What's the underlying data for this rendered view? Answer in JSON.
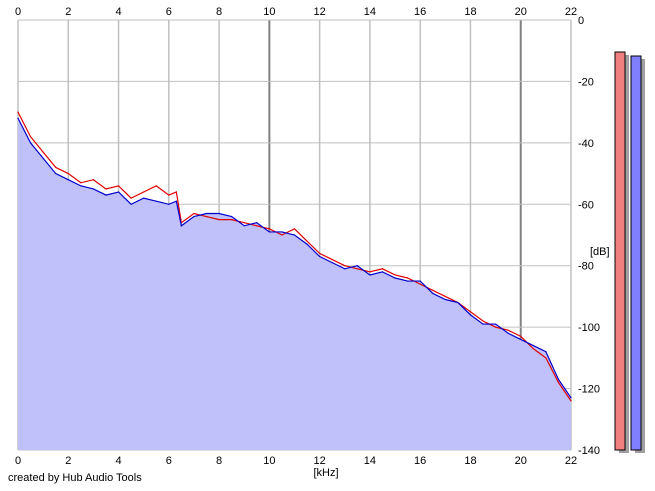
{
  "chart_data": {
    "type": "area",
    "xlabel": "[kHz]",
    "ylabel": "[dB]",
    "xlim": [
      0,
      22
    ],
    "ylim": [
      -140,
      0
    ],
    "x_ticks": [
      "0",
      "2",
      "4",
      "6",
      "8",
      "10",
      "12",
      "14",
      "16",
      "18",
      "20",
      "22"
    ],
    "y_ticks": [
      "0",
      "-20",
      "-40",
      "-60",
      "-80",
      "-100",
      "-120",
      "-140"
    ],
    "grid": true,
    "colors": {
      "area_fill": "#c0c0fa",
      "red_series": "#e00000",
      "blue_series": "#0000cc",
      "gridline": "#c0c0c0",
      "gridline_major": "#808080",
      "meter_left": "#f08080",
      "meter_right": "#8080ff"
    },
    "series": [
      {
        "color": "#e00000",
        "x": [
          0.0,
          0.5,
          1.0,
          1.5,
          2.0,
          2.5,
          3.0,
          3.5,
          4.0,
          4.5,
          5.0,
          5.5,
          6.0,
          6.3,
          6.5,
          7.0,
          7.5,
          8.0,
          8.5,
          9.0,
          9.5,
          10.0,
          10.5,
          11.0,
          11.5,
          12.0,
          12.5,
          13.0,
          13.5,
          14.0,
          14.5,
          15.0,
          15.5,
          16.0,
          16.5,
          17.0,
          17.5,
          18.0,
          18.5,
          19.0,
          19.5,
          20.0,
          20.5,
          21.0,
          21.5,
          22.0
        ],
        "y": [
          -30,
          -38,
          -43,
          -48,
          -50,
          -53,
          -52,
          -55,
          -54,
          -58,
          -56,
          -54,
          -57,
          -56,
          -66,
          -63,
          -64,
          -65,
          -65,
          -66,
          -67,
          -68,
          -70,
          -68,
          -72,
          -76,
          -78,
          -80,
          -81,
          -82,
          -81,
          -83,
          -84,
          -86,
          -88,
          -90,
          -92,
          -95,
          -98,
          -100,
          -101,
          -103,
          -107,
          -110,
          -118,
          -124
        ]
      },
      {
        "color": "#0000cc",
        "x": [
          0.0,
          0.5,
          1.0,
          1.5,
          2.0,
          2.5,
          3.0,
          3.5,
          4.0,
          4.5,
          5.0,
          5.5,
          6.0,
          6.3,
          6.5,
          7.0,
          7.5,
          8.0,
          8.5,
          9.0,
          9.5,
          10.0,
          10.5,
          11.0,
          11.5,
          12.0,
          12.5,
          13.0,
          13.5,
          14.0,
          14.5,
          15.0,
          15.5,
          16.0,
          16.5,
          17.0,
          17.5,
          18.0,
          18.5,
          19.0,
          19.5,
          20.0,
          20.5,
          21.0,
          21.5,
          22.0
        ],
        "y": [
          -32,
          -40,
          -45,
          -50,
          -52,
          -54,
          -55,
          -57,
          -56,
          -60,
          -58,
          -59,
          -60,
          -59,
          -67,
          -64,
          -63,
          -63,
          -64,
          -67,
          -66,
          -69,
          -69,
          -70,
          -73,
          -77,
          -79,
          -81,
          -80,
          -83,
          -82,
          -84,
          -85,
          -85,
          -89,
          -91,
          -92,
          -96,
          -99,
          -99,
          -102,
          -104,
          -106,
          -108,
          -117,
          -123
        ]
      }
    ]
  },
  "credit": "created by Hub Audio Tools"
}
